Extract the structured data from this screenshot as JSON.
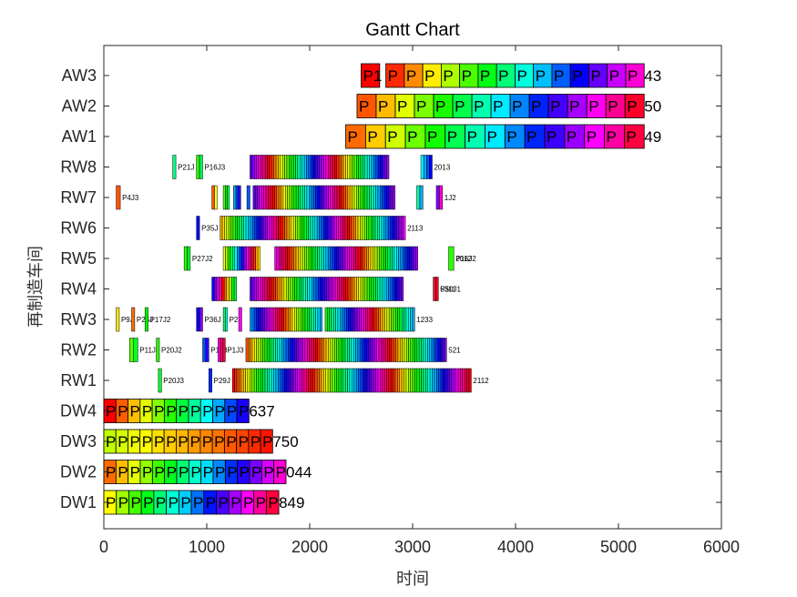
{
  "chart_data": {
    "type": "gantt",
    "title": "Gantt Chart",
    "xlabel": "时间",
    "ylabel": "再制造车间",
    "xlim": [
      0,
      6000
    ],
    "xticks": [
      0,
      1000,
      2000,
      3000,
      4000,
      5000,
      6000
    ],
    "grid": false,
    "rows": [
      {
        "name": "DW1",
        "style": "big",
        "end_label": "849",
        "block_label": "P",
        "segments": [
          {
            "start": 0,
            "end": 1700,
            "count": 14,
            "hue_start": 60,
            "hue_end": 345
          }
        ]
      },
      {
        "name": "DW2",
        "style": "big",
        "end_label": "044",
        "block_label": "P",
        "segments": [
          {
            "start": 0,
            "end": 1770,
            "count": 15,
            "hue_start": 25,
            "hue_end": 310
          }
        ]
      },
      {
        "name": "DW3",
        "style": "big",
        "end_label": "750",
        "block_label": "P",
        "segments": [
          {
            "start": 0,
            "end": 1640,
            "count": 14,
            "hue_start": 75,
            "hue_end": 5
          }
        ]
      },
      {
        "name": "DW4",
        "style": "big",
        "end_label": "637",
        "block_label": "P",
        "segments": [
          {
            "start": 0,
            "end": 1410,
            "count": 12,
            "hue_start": 0,
            "hue_end": 245
          }
        ]
      },
      {
        "name": "RW1",
        "style": "small",
        "end_label": "2112",
        "segments": [
          {
            "start": 530,
            "end": 560,
            "count": 1,
            "hue_start": 130,
            "hue_end": 130,
            "label": "P20J3"
          },
          {
            "start": 1020,
            "end": 1050,
            "count": 1,
            "hue_start": 230,
            "hue_end": 230,
            "label": "P29J"
          },
          {
            "start": 1250,
            "end": 3570,
            "count": 110,
            "hue_start": 0,
            "hue_end": 1080
          }
        ]
      },
      {
        "name": "RW2",
        "style": "small",
        "end_label": "521",
        "segments": [
          {
            "start": 250,
            "end": 330,
            "count": 2,
            "hue_start": 100,
            "hue_end": 130,
            "label": "P11J3"
          },
          {
            "start": 510,
            "end": 540,
            "count": 1,
            "hue_start": 110,
            "hue_end": 110,
            "label": "P20J2"
          },
          {
            "start": 960,
            "end": 1020,
            "count": 2,
            "hue_start": 220,
            "hue_end": 250,
            "label": "P1J3"
          },
          {
            "start": 1110,
            "end": 1180,
            "count": 3,
            "hue_start": 310,
            "hue_end": 350,
            "label": "P1J3"
          },
          {
            "start": 1380,
            "end": 3330,
            "count": 95,
            "hue_start": 20,
            "hue_end": 990
          }
        ]
      },
      {
        "name": "RW3",
        "style": "small",
        "end_label": "1233",
        "segments": [
          {
            "start": 120,
            "end": 150,
            "count": 1,
            "hue_start": 55,
            "hue_end": 55,
            "label": "P9J"
          },
          {
            "start": 270,
            "end": 300,
            "count": 1,
            "hue_start": 25,
            "hue_end": 25,
            "label": "P25J"
          },
          {
            "start": 400,
            "end": 430,
            "count": 1,
            "hue_start": 120,
            "hue_end": 120,
            "label": "P17J2"
          },
          {
            "start": 900,
            "end": 960,
            "count": 2,
            "hue_start": 240,
            "hue_end": 270,
            "label": "P36J"
          },
          {
            "start": 1160,
            "end": 1200,
            "count": 2,
            "hue_start": 140,
            "hue_end": 170,
            "label": "P2J"
          },
          {
            "start": 1310,
            "end": 1340,
            "count": 1,
            "hue_start": 300,
            "hue_end": 300
          },
          {
            "start": 1420,
            "end": 2120,
            "count": 34,
            "hue_start": 200,
            "hue_end": 560
          },
          {
            "start": 2150,
            "end": 3020,
            "count": 42,
            "hue_start": 120,
            "hue_end": 560
          }
        ]
      },
      {
        "name": "RW4",
        "style": "small",
        "end_label": "5311",
        "segments": [
          {
            "start": 1050,
            "end": 1290,
            "count": 10,
            "hue_start": 240,
            "hue_end": 500
          },
          {
            "start": 1420,
            "end": 2910,
            "count": 72,
            "hue_start": 260,
            "hue_end": 990
          },
          {
            "start": 3200,
            "end": 3250,
            "count": 2,
            "hue_start": 345,
            "hue_end": 355,
            "label": "P50J1"
          }
        ]
      },
      {
        "name": "RW5",
        "style": "small",
        "end_label": "2012",
        "segments": [
          {
            "start": 780,
            "end": 840,
            "count": 2,
            "hue_start": 110,
            "hue_end": 130,
            "label": "P27J2"
          },
          {
            "start": 1160,
            "end": 1520,
            "count": 16,
            "hue_start": 60,
            "hue_end": 420
          },
          {
            "start": 1660,
            "end": 3050,
            "count": 67,
            "hue_start": 300,
            "hue_end": 1000
          },
          {
            "start": 3350,
            "end": 3400,
            "count": 1,
            "hue_start": 110,
            "hue_end": 110,
            "label": "P16J2"
          }
        ]
      },
      {
        "name": "RW6",
        "style": "small",
        "end_label": "2113",
        "segments": [
          {
            "start": 900,
            "end": 930,
            "count": 1,
            "hue_start": 240,
            "hue_end": 240,
            "label": "P35J"
          },
          {
            "start": 1130,
            "end": 2930,
            "count": 86,
            "hue_start": 40,
            "hue_end": 1020
          }
        ]
      },
      {
        "name": "RW7",
        "style": "small",
        "end_label": "1J2",
        "segments": [
          {
            "start": 120,
            "end": 160,
            "count": 1,
            "hue_start": 20,
            "hue_end": 20,
            "label": "P4J3"
          },
          {
            "start": 1050,
            "end": 1100,
            "count": 2,
            "hue_start": 20,
            "hue_end": 60
          },
          {
            "start": 1160,
            "end": 1220,
            "count": 3,
            "hue_start": 100,
            "hue_end": 140
          },
          {
            "start": 1260,
            "end": 1330,
            "count": 3,
            "hue_start": 200,
            "hue_end": 250
          },
          {
            "start": 1390,
            "end": 1420,
            "count": 1,
            "hue_start": 220,
            "hue_end": 220
          },
          {
            "start": 1450,
            "end": 2830,
            "count": 66,
            "hue_start": 260,
            "hue_end": 1000
          },
          {
            "start": 3040,
            "end": 3100,
            "count": 2,
            "hue_start": 160,
            "hue_end": 200
          },
          {
            "start": 3230,
            "end": 3290,
            "count": 2,
            "hue_start": 270,
            "hue_end": 310
          }
        ]
      },
      {
        "name": "RW8",
        "style": "small",
        "end_label": "2013",
        "segments": [
          {
            "start": 670,
            "end": 700,
            "count": 1,
            "hue_start": 150,
            "hue_end": 150,
            "label": "P21J"
          },
          {
            "start": 900,
            "end": 960,
            "count": 2,
            "hue_start": 110,
            "hue_end": 140,
            "label": "P16J3"
          },
          {
            "start": 1420,
            "end": 2770,
            "count": 64,
            "hue_start": 260,
            "hue_end": 1000
          },
          {
            "start": 3080,
            "end": 3190,
            "count": 4,
            "hue_start": 180,
            "hue_end": 240
          }
        ]
      },
      {
        "name": "AW1",
        "style": "big",
        "end_label": "49",
        "block_label": "P",
        "segments": [
          {
            "start": 2350,
            "end": 5250,
            "count": 15,
            "hue_start": 25,
            "hue_end": 345
          }
        ]
      },
      {
        "name": "AW2",
        "style": "big",
        "end_label": "50",
        "block_label": "P",
        "segments": [
          {
            "start": 2460,
            "end": 5250,
            "count": 15,
            "hue_start": 20,
            "hue_end": 350
          }
        ]
      },
      {
        "name": "AW3",
        "style": "big",
        "end_label": "43",
        "block_label": "P",
        "segments": [
          {
            "start": 2500,
            "end": 2680,
            "count": 1,
            "hue_start": 0,
            "hue_end": 0,
            "label": "P1"
          },
          {
            "start": 2740,
            "end": 5250,
            "count": 14,
            "hue_start": 10,
            "hue_end": 310
          }
        ]
      }
    ]
  }
}
